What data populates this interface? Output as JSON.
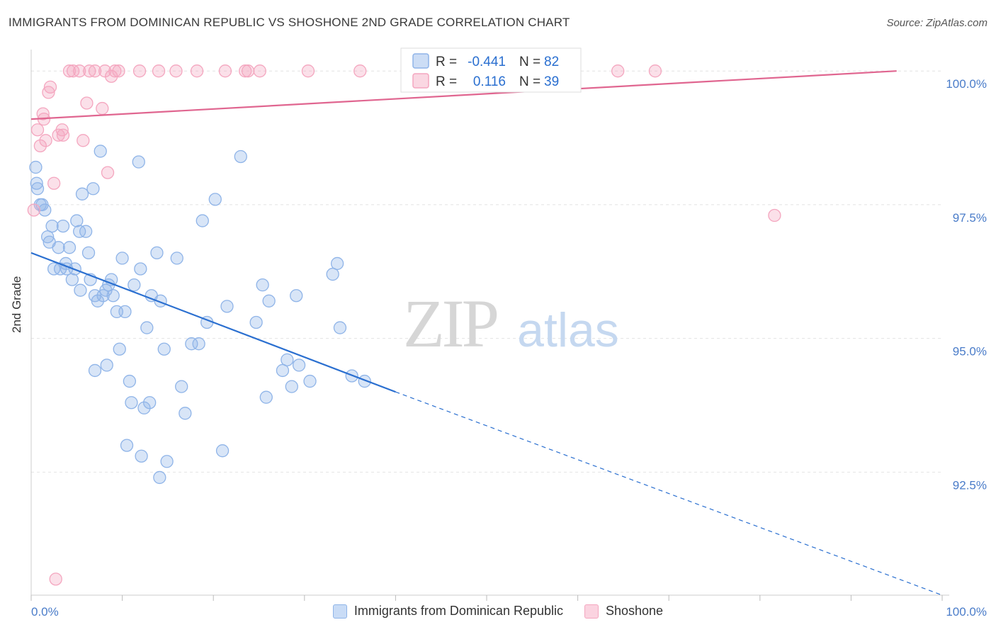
{
  "title": "IMMIGRANTS FROM DOMINICAN REPUBLIC VS SHOSHONE 2ND GRADE CORRELATION CHART",
  "source": "Source: ZipAtlas.com",
  "watermark": {
    "zip": "ZIP",
    "atlas": "atlas"
  },
  "chart_data": {
    "type": "scatter",
    "ylabel": "2nd Grade",
    "xlim": [
      0,
      100
    ],
    "ylim": [
      90.2,
      100.4
    ],
    "x_tick_labels": [
      "0.0%",
      "100.0%"
    ],
    "y_ticks": [
      {
        "value": 100.0,
        "label": "100.0%"
      },
      {
        "value": 97.5,
        "label": "97.5%"
      },
      {
        "value": 95.0,
        "label": "95.0%"
      },
      {
        "value": 92.5,
        "label": "92.5%"
      }
    ],
    "grid": true,
    "legend": [
      {
        "r_label": "R =",
        "r_value": "-0.441",
        "n_label": "N =",
        "n_value": "82"
      },
      {
        "r_label": "R =",
        "r_value": "0.116",
        "n_label": "N =",
        "n_value": "39"
      }
    ],
    "series": [
      {
        "name": "Immigrants from Dominican Republic",
        "color": "#8fb4e8",
        "line_color": "#2a6fd0",
        "trend": {
          "x0": 0,
          "y0": 96.6,
          "x1": 40,
          "y1": 94.0,
          "dash_to_x": 100,
          "dash_to_y": 90.2
        },
        "points": [
          [
            0.5,
            98.2
          ],
          [
            0.6,
            97.9
          ],
          [
            0.7,
            97.8
          ],
          [
            1.2,
            97.5
          ],
          [
            1.5,
            97.4
          ],
          [
            1.8,
            96.9
          ],
          [
            2.3,
            97.1
          ],
          [
            2.5,
            96.3
          ],
          [
            3.0,
            96.7
          ],
          [
            3.2,
            96.3
          ],
          [
            3.5,
            97.1
          ],
          [
            3.8,
            96.4
          ],
          [
            4.2,
            96.7
          ],
          [
            4.5,
            96.1
          ],
          [
            4.8,
            96.3
          ],
          [
            5.0,
            97.2
          ],
          [
            5.3,
            97.0
          ],
          [
            5.6,
            97.7
          ],
          [
            6.0,
            97.0
          ],
          [
            6.3,
            96.6
          ],
          [
            6.5,
            96.1
          ],
          [
            6.8,
            97.8
          ],
          [
            7.0,
            95.8
          ],
          [
            7.3,
            95.7
          ],
          [
            7.6,
            98.5
          ],
          [
            7.9,
            95.8
          ],
          [
            8.2,
            95.9
          ],
          [
            8.5,
            96.0
          ],
          [
            8.8,
            96.1
          ],
          [
            9.0,
            95.8
          ],
          [
            9.4,
            95.5
          ],
          [
            9.7,
            94.8
          ],
          [
            10.0,
            96.5
          ],
          [
            10.3,
            95.5
          ],
          [
            10.8,
            94.2
          ],
          [
            11.0,
            93.8
          ],
          [
            11.3,
            96.0
          ],
          [
            11.8,
            98.3
          ],
          [
            12.0,
            96.3
          ],
          [
            12.4,
            93.7
          ],
          [
            12.7,
            95.2
          ],
          [
            13.0,
            93.8
          ],
          [
            13.2,
            95.8
          ],
          [
            13.8,
            96.6
          ],
          [
            14.2,
            95.7
          ],
          [
            14.6,
            94.8
          ],
          [
            14.9,
            92.7
          ],
          [
            16.0,
            96.5
          ],
          [
            16.5,
            94.1
          ],
          [
            16.9,
            93.6
          ],
          [
            17.6,
            94.9
          ],
          [
            18.4,
            94.9
          ],
          [
            18.8,
            97.2
          ],
          [
            19.3,
            95.3
          ],
          [
            20.2,
            97.6
          ],
          [
            21.0,
            92.9
          ],
          [
            21.5,
            95.6
          ],
          [
            23.0,
            98.4
          ],
          [
            24.7,
            95.3
          ],
          [
            25.4,
            96.0
          ],
          [
            25.8,
            93.9
          ],
          [
            26.1,
            95.7
          ],
          [
            27.6,
            94.4
          ],
          [
            28.1,
            94.6
          ],
          [
            28.6,
            94.1
          ],
          [
            29.1,
            95.8
          ],
          [
            29.4,
            94.5
          ],
          [
            30.6,
            94.2
          ],
          [
            33.1,
            96.2
          ],
          [
            33.6,
            96.4
          ],
          [
            33.9,
            95.2
          ],
          [
            35.2,
            94.3
          ],
          [
            36.6,
            94.2
          ],
          [
            7.0,
            94.4
          ],
          [
            8.3,
            94.5
          ],
          [
            10.5,
            93.0
          ],
          [
            12.1,
            92.8
          ],
          [
            14.1,
            92.4
          ],
          [
            1.0,
            97.5
          ],
          [
            2.0,
            96.8
          ],
          [
            3.9,
            96.3
          ],
          [
            5.4,
            95.9
          ]
        ]
      },
      {
        "name": "Shoshone",
        "color": "#f4a6bf",
        "line_color": "#e06690",
        "trend": {
          "x0": 0,
          "y0": 99.1,
          "x1": 95,
          "y1": 100.0
        },
        "points": [
          [
            0.3,
            97.4
          ],
          [
            0.7,
            98.9
          ],
          [
            1.0,
            98.6
          ],
          [
            1.3,
            99.2
          ],
          [
            1.6,
            98.7
          ],
          [
            1.9,
            99.6
          ],
          [
            2.1,
            99.7
          ],
          [
            2.5,
            97.9
          ],
          [
            3.0,
            98.8
          ],
          [
            3.4,
            98.9
          ],
          [
            3.5,
            98.8
          ],
          [
            4.2,
            100.0
          ],
          [
            4.6,
            100.0
          ],
          [
            5.3,
            100.0
          ],
          [
            5.7,
            98.7
          ],
          [
            6.1,
            99.4
          ],
          [
            6.4,
            100.0
          ],
          [
            7.0,
            100.0
          ],
          [
            7.8,
            99.3
          ],
          [
            8.1,
            100.0
          ],
          [
            8.4,
            98.1
          ],
          [
            8.8,
            99.9
          ],
          [
            9.2,
            100.0
          ],
          [
            9.6,
            100.0
          ],
          [
            11.9,
            100.0
          ],
          [
            14.0,
            100.0
          ],
          [
            15.9,
            100.0
          ],
          [
            18.2,
            100.0
          ],
          [
            21.3,
            100.0
          ],
          [
            23.5,
            100.0
          ],
          [
            23.8,
            100.0
          ],
          [
            25.1,
            100.0
          ],
          [
            30.4,
            100.0
          ],
          [
            36.1,
            100.0
          ],
          [
            64.4,
            100.0
          ],
          [
            68.5,
            100.0
          ],
          [
            81.6,
            97.3
          ],
          [
            2.7,
            90.5
          ],
          [
            1.4,
            99.1
          ]
        ]
      }
    ]
  }
}
